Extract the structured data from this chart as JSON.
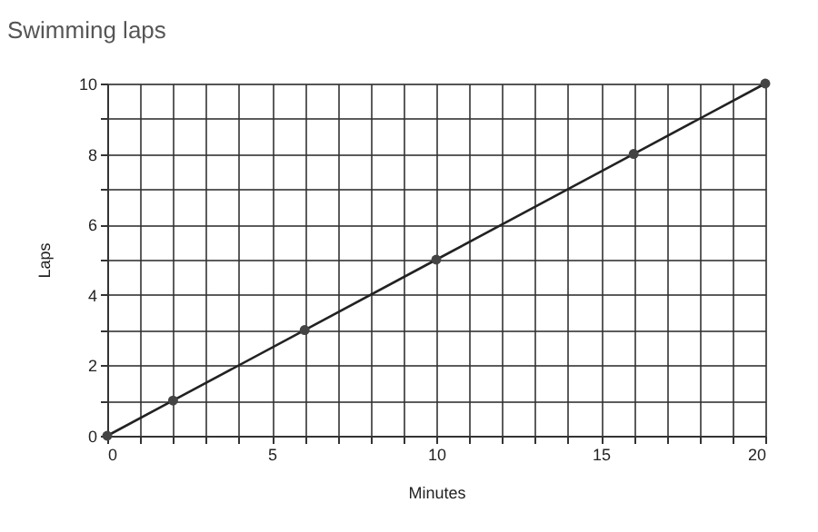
{
  "chart_data": {
    "type": "line",
    "title": "Swimming laps",
    "xlabel": "Minutes",
    "ylabel": "Laps",
    "x": [
      0,
      2,
      6,
      10,
      16,
      20
    ],
    "series": [
      {
        "color": "#222222",
        "values": [
          0,
          1,
          3,
          5,
          8,
          10
        ]
      }
    ],
    "xlim": [
      0,
      20
    ],
    "ylim": [
      0,
      10
    ],
    "xticks": [
      0,
      {
        "value": 1,
        "label": null
      },
      {
        "value": 2,
        "label": null
      },
      {
        "value": 3,
        "label": null
      },
      {
        "value": 4,
        "label": null
      },
      5,
      {
        "value": 6,
        "label": null
      },
      {
        "value": 7,
        "label": null
      },
      {
        "value": 8,
        "label": null
      },
      {
        "value": 9,
        "label": null
      },
      10,
      {
        "value": 11,
        "label": null
      },
      {
        "value": 12,
        "label": null
      },
      {
        "value": 13,
        "label": null
      },
      {
        "value": 14,
        "label": null
      },
      15,
      {
        "value": 16,
        "label": null
      },
      {
        "value": 17,
        "label": null
      },
      {
        "value": 18,
        "label": null
      },
      {
        "value": 19,
        "label": null
      },
      20
    ],
    "yticks": [
      0,
      {
        "value": 1,
        "label": null
      },
      2,
      {
        "value": 3,
        "label": null
      },
      4,
      {
        "value": 5,
        "label": null
      },
      6,
      {
        "value": 7,
        "label": null
      },
      8,
      {
        "value": 9,
        "label": null
      },
      10
    ],
    "grid": true,
    "marker": "circle",
    "line_style": "solid"
  }
}
